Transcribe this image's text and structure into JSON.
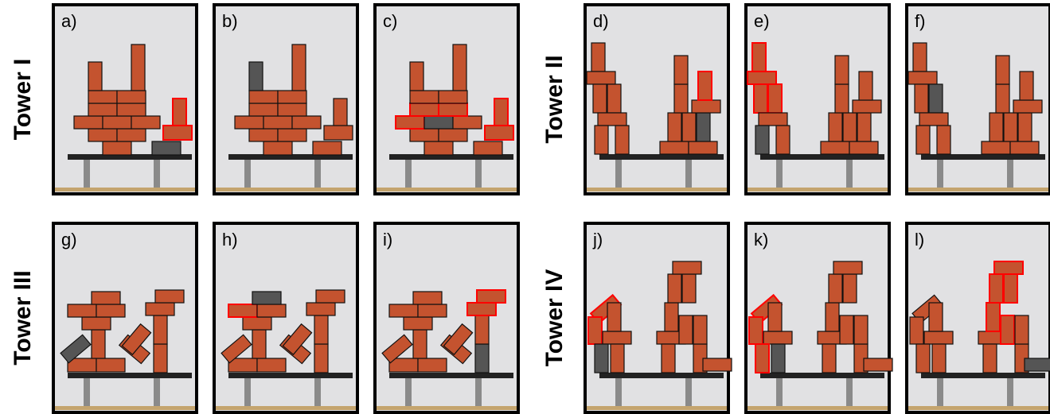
{
  "groups": [
    {
      "label": "Tower I",
      "panels": [
        "a)",
        "b)",
        "c)"
      ]
    },
    {
      "label": "Tower II",
      "panels": [
        "d)",
        "e)",
        "f)"
      ]
    },
    {
      "label": "Tower III",
      "panels": [
        "g)",
        "h)",
        "i)"
      ]
    },
    {
      "label": "Tower IV",
      "panels": [
        "j)",
        "k)",
        "l)"
      ]
    }
  ]
}
